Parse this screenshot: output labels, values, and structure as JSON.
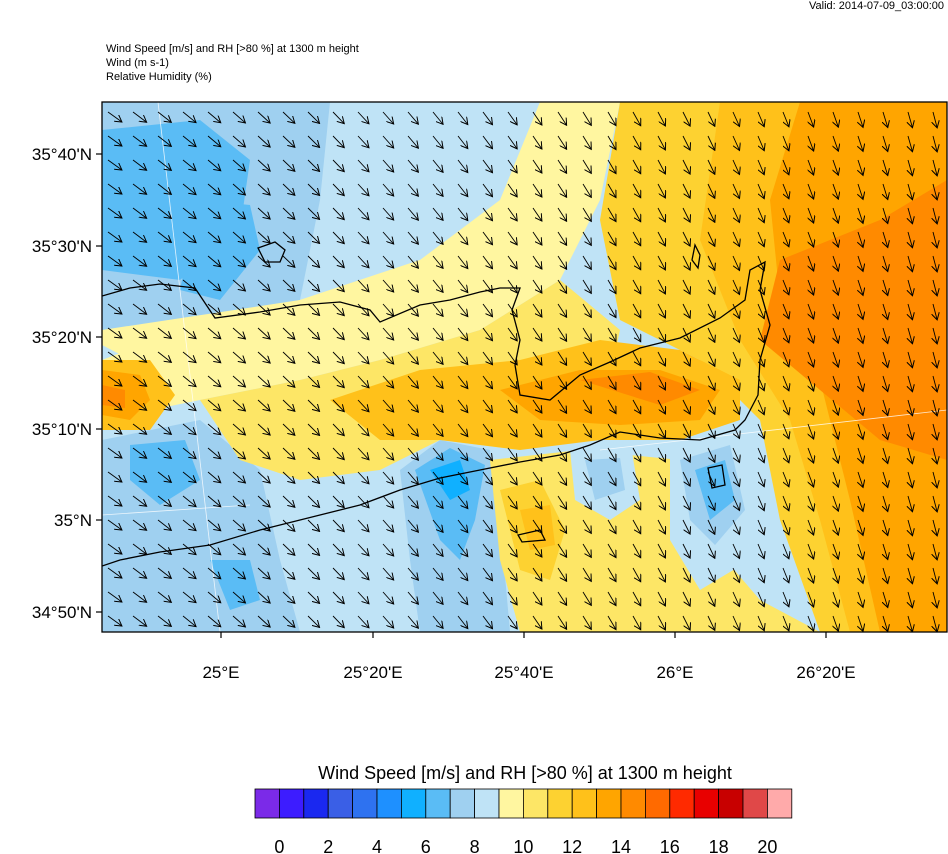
{
  "header": {
    "valid": "Valid: 2014-07-09_03:00:00",
    "title_lines": [
      "Wind Speed [m/s] and RH [>80 %] at 1300 m height",
      "Wind   (m s-1)",
      "Relative Humidity   (%)"
    ]
  },
  "map": {
    "lat_labels": [
      "35°40'N",
      "35°30'N",
      "35°20'N",
      "35°10'N",
      "35°N",
      "34°50'N"
    ],
    "lon_labels": [
      "25°E",
      "25°20'E",
      "25°40'E",
      "26°E",
      "26°20'E"
    ],
    "wind_direction": "north-west to south-east"
  },
  "colorbar": {
    "title": "Wind Speed [m/s] and RH [>80 %] at 1300 m height",
    "colors": [
      "#7b2ae8",
      "#3d1cff",
      "#1a28f0",
      "#3a5fe6",
      "#2e72f0",
      "#1e90ff",
      "#10b0ff",
      "#5abcf5",
      "#9fd0f0",
      "#bfe3f6",
      "#fff6a0",
      "#fde666",
      "#fdd231",
      "#ffc11a",
      "#ffa500",
      "#ff8a00",
      "#ff6a00",
      "#ff2a00",
      "#e80000",
      "#c80000",
      "#e04848",
      "#ffaaaa"
    ],
    "tick_labels": [
      "0",
      "2",
      "4",
      "6",
      "8",
      "10",
      "12",
      "14",
      "16",
      "18",
      "20"
    ]
  }
}
